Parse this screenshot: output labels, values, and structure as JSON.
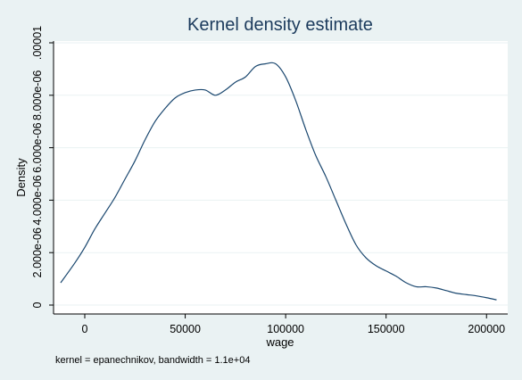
{
  "chart_data": {
    "type": "line",
    "title": "Kernel density estimate",
    "xlabel": "wage",
    "ylabel": "Density",
    "note": "kernel = epanechnikov, bandwidth =  1.1e+04",
    "xlim": [
      -12000,
      207000
    ],
    "ylim": [
      0,
      1e-05
    ],
    "x_ticks": [
      {
        "value": 0,
        "label": "0"
      },
      {
        "value": 50000,
        "label": "50000"
      },
      {
        "value": 100000,
        "label": "100000"
      },
      {
        "value": 150000,
        "label": "150000"
      },
      {
        "value": 200000,
        "label": "200000"
      }
    ],
    "y_ticks": [
      {
        "value": 0,
        "label": "0"
      },
      {
        "value": 2e-06,
        "label": "2.000e-06"
      },
      {
        "value": 4e-06,
        "label": "4.000e-06"
      },
      {
        "value": 6e-06,
        "label": "6.000e-06"
      },
      {
        "value": 8e-06,
        "label": "8.000e-06"
      },
      {
        "value": 1e-05,
        "label": ".00001"
      }
    ],
    "grid": true,
    "legend": "none",
    "series": [
      {
        "color": "#1a476f",
        "x": [
          -12000,
          -5000,
          0,
          5000,
          10000,
          15000,
          20000,
          25000,
          30000,
          35000,
          40000,
          45000,
          50000,
          55000,
          60000,
          65000,
          70000,
          75000,
          80000,
          85000,
          90000,
          95000,
          100000,
          105000,
          110000,
          115000,
          120000,
          125000,
          130000,
          135000,
          140000,
          145000,
          150000,
          155000,
          160000,
          165000,
          170000,
          175000,
          180000,
          185000,
          190000,
          195000,
          200000,
          205000
        ],
        "y": [
          8.5e-07,
          1.6e-06,
          2.2e-06,
          2.9e-06,
          3.5e-06,
          4.1e-06,
          4.8e-06,
          5.5e-06,
          6.3e-06,
          7e-06,
          7.5e-06,
          7.9e-06,
          8.1e-06,
          8.2e-06,
          8.2e-06,
          8e-06,
          8.2e-06,
          8.5e-06,
          8.7e-06,
          9.1e-06,
          9.2e-06,
          9.2e-06,
          8.7e-06,
          7.8e-06,
          6.7e-06,
          5.7e-06,
          4.9e-06,
          4e-06,
          3.1e-06,
          2.3e-06,
          1.8e-06,
          1.5e-06,
          1.3e-06,
          1.1e-06,
          8.5e-07,
          7e-07,
          7e-07,
          6.5e-07,
          5.5e-07,
          4.5e-07,
          4e-07,
          3.5e-07,
          2.8e-07,
          2e-07
        ]
      }
    ]
  }
}
